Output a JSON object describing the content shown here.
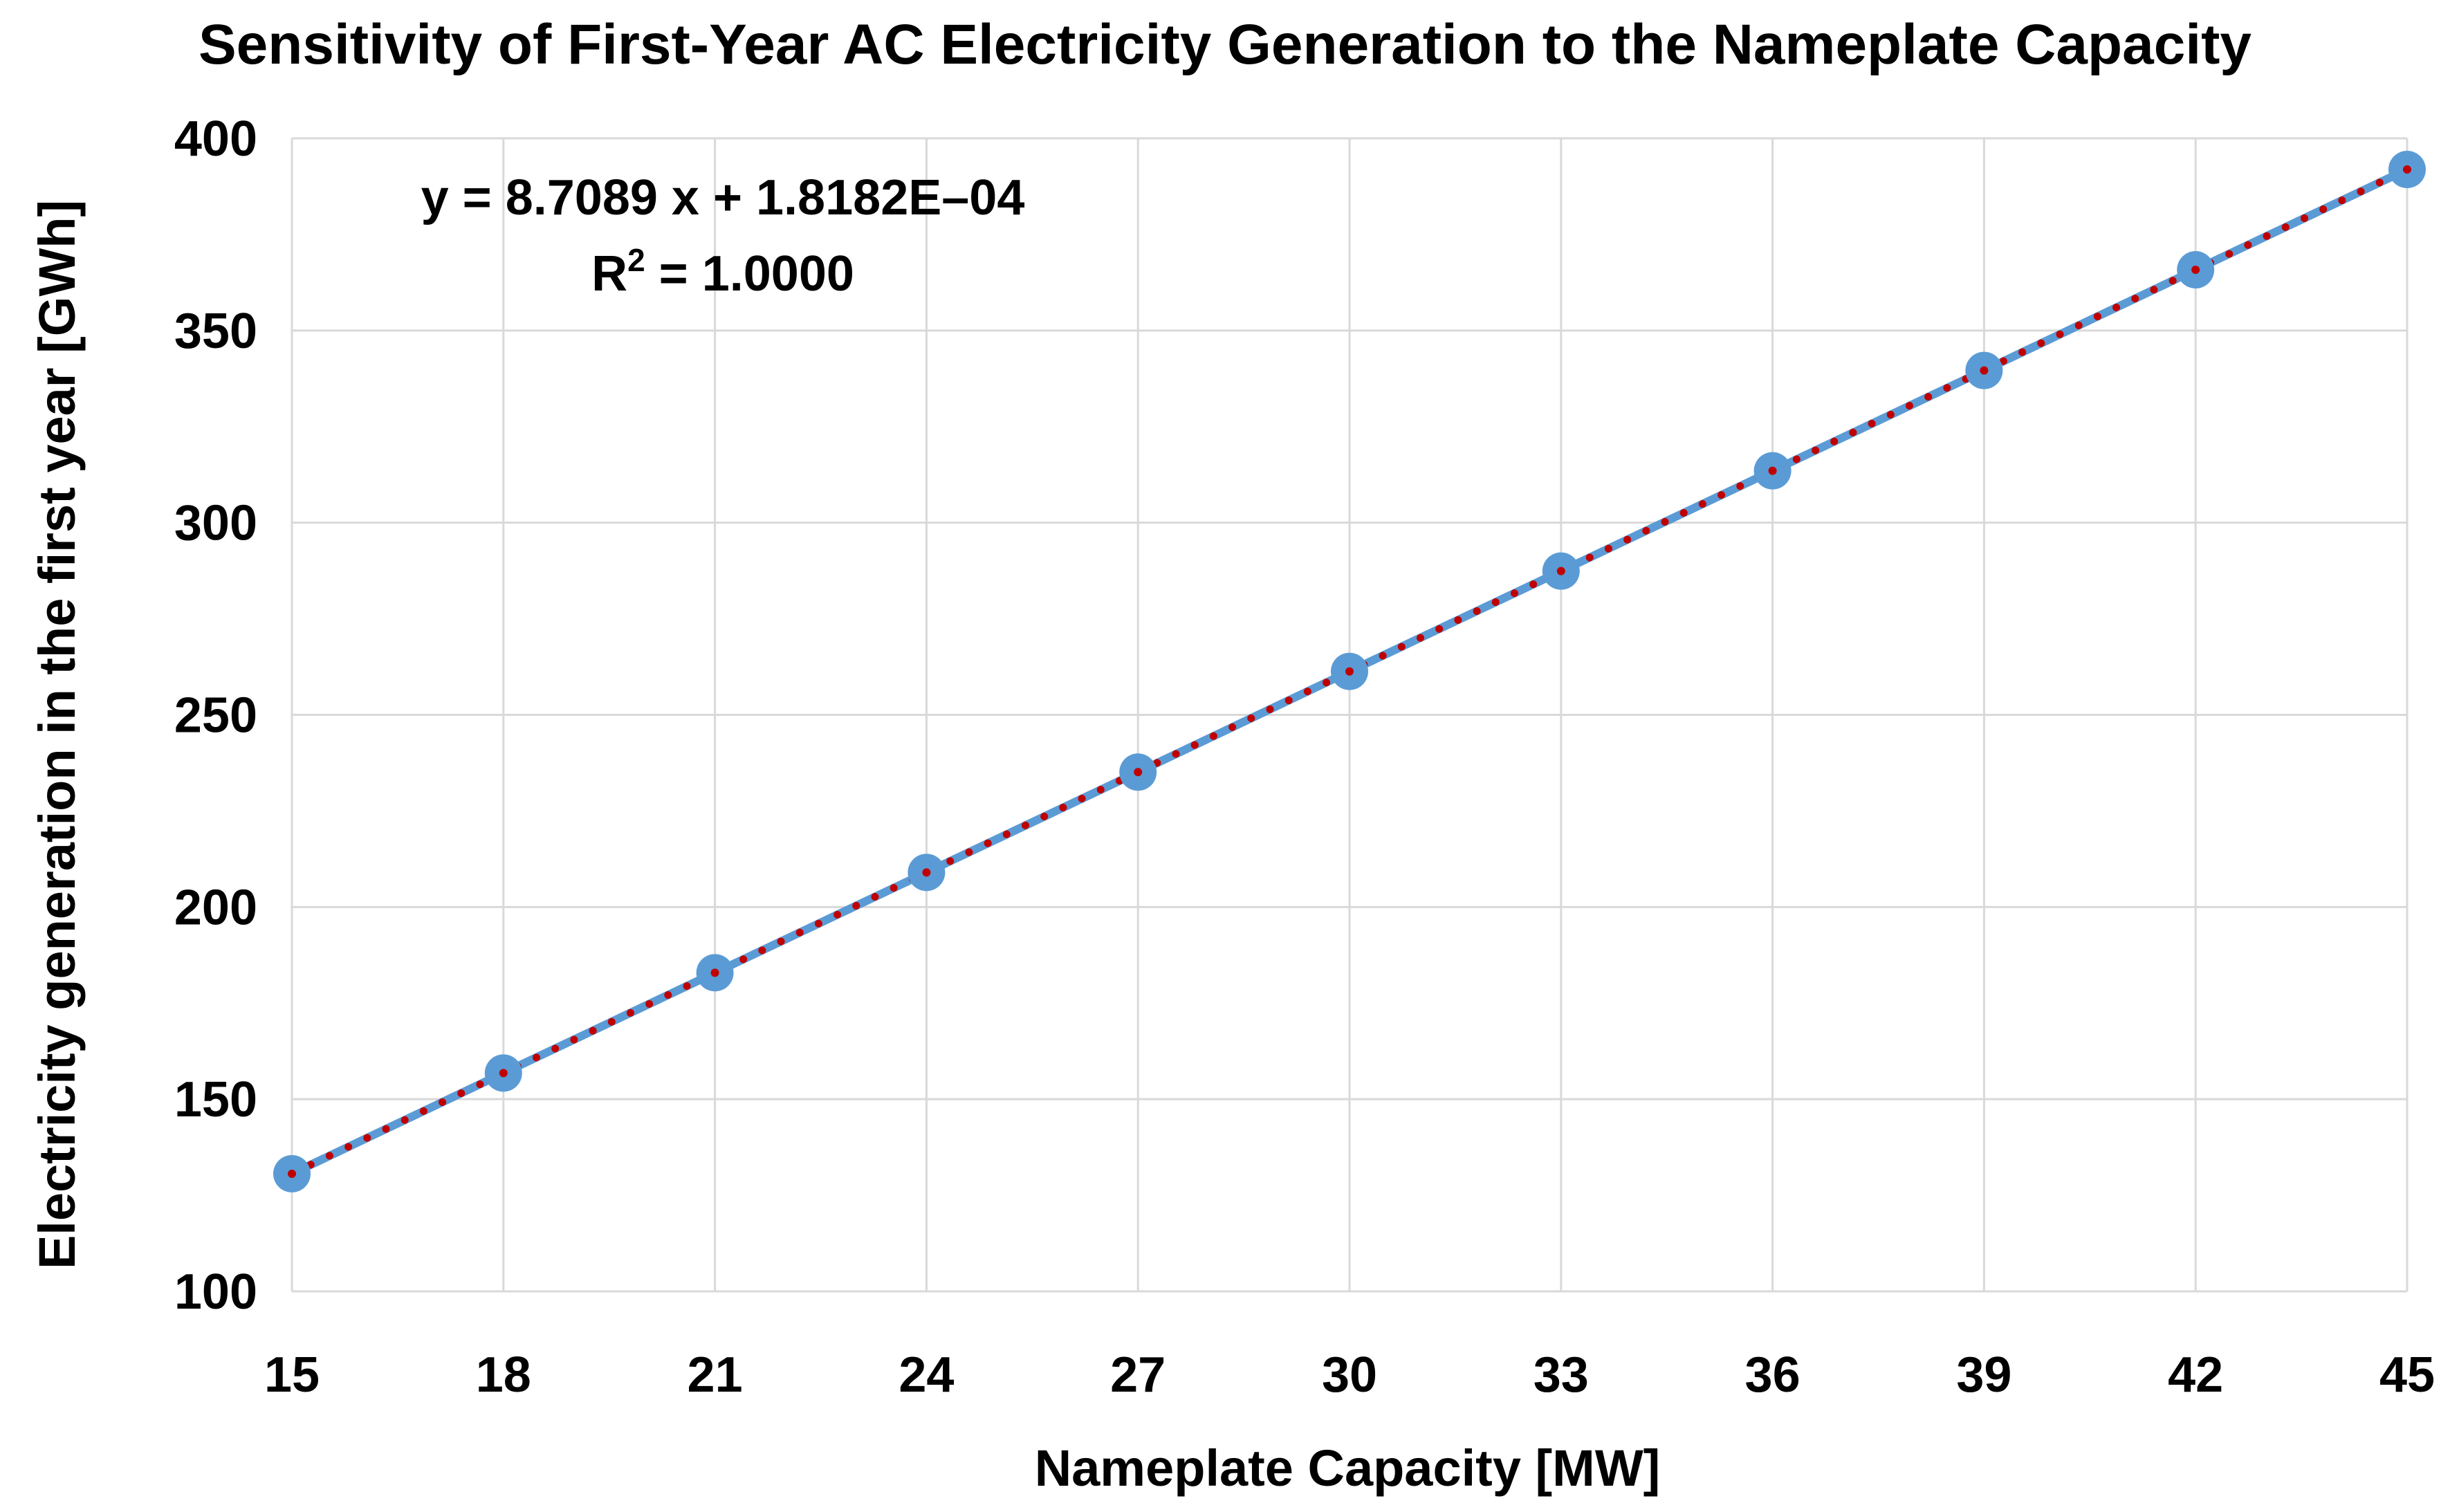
{
  "chart_data": {
    "type": "scatter",
    "title": "Sensitivity of First-Year AC Electricity Generation to the Nameplate Capacity",
    "xlabel": "Nameplate Capacity [MW]",
    "ylabel": "Electricity generation in the first year [GWh]",
    "xlim": [
      15,
      45
    ],
    "ylim": [
      100,
      400
    ],
    "xticks": [
      15,
      18,
      21,
      24,
      27,
      30,
      33,
      36,
      39,
      42,
      45
    ],
    "yticks": [
      100,
      150,
      200,
      250,
      300,
      350,
      400
    ],
    "grid": true,
    "series": [
      {
        "x": [
          15,
          18,
          21,
          24,
          27,
          30,
          33,
          36,
          39,
          42,
          45
        ],
        "y": [
          130.6,
          156.8,
          182.9,
          209.0,
          235.1,
          261.3,
          287.4,
          313.5,
          339.6,
          365.8,
          391.9
        ],
        "color": "#5b9bd5"
      }
    ],
    "trendline": {
      "type": "linear",
      "slope": 8.7089,
      "intercept": 0.00018182,
      "color": "#c00000",
      "equation": "y = 8.7089 x + 1.8182E–04",
      "r2_label": "R",
      "r2_value": " = 1.0000"
    }
  }
}
